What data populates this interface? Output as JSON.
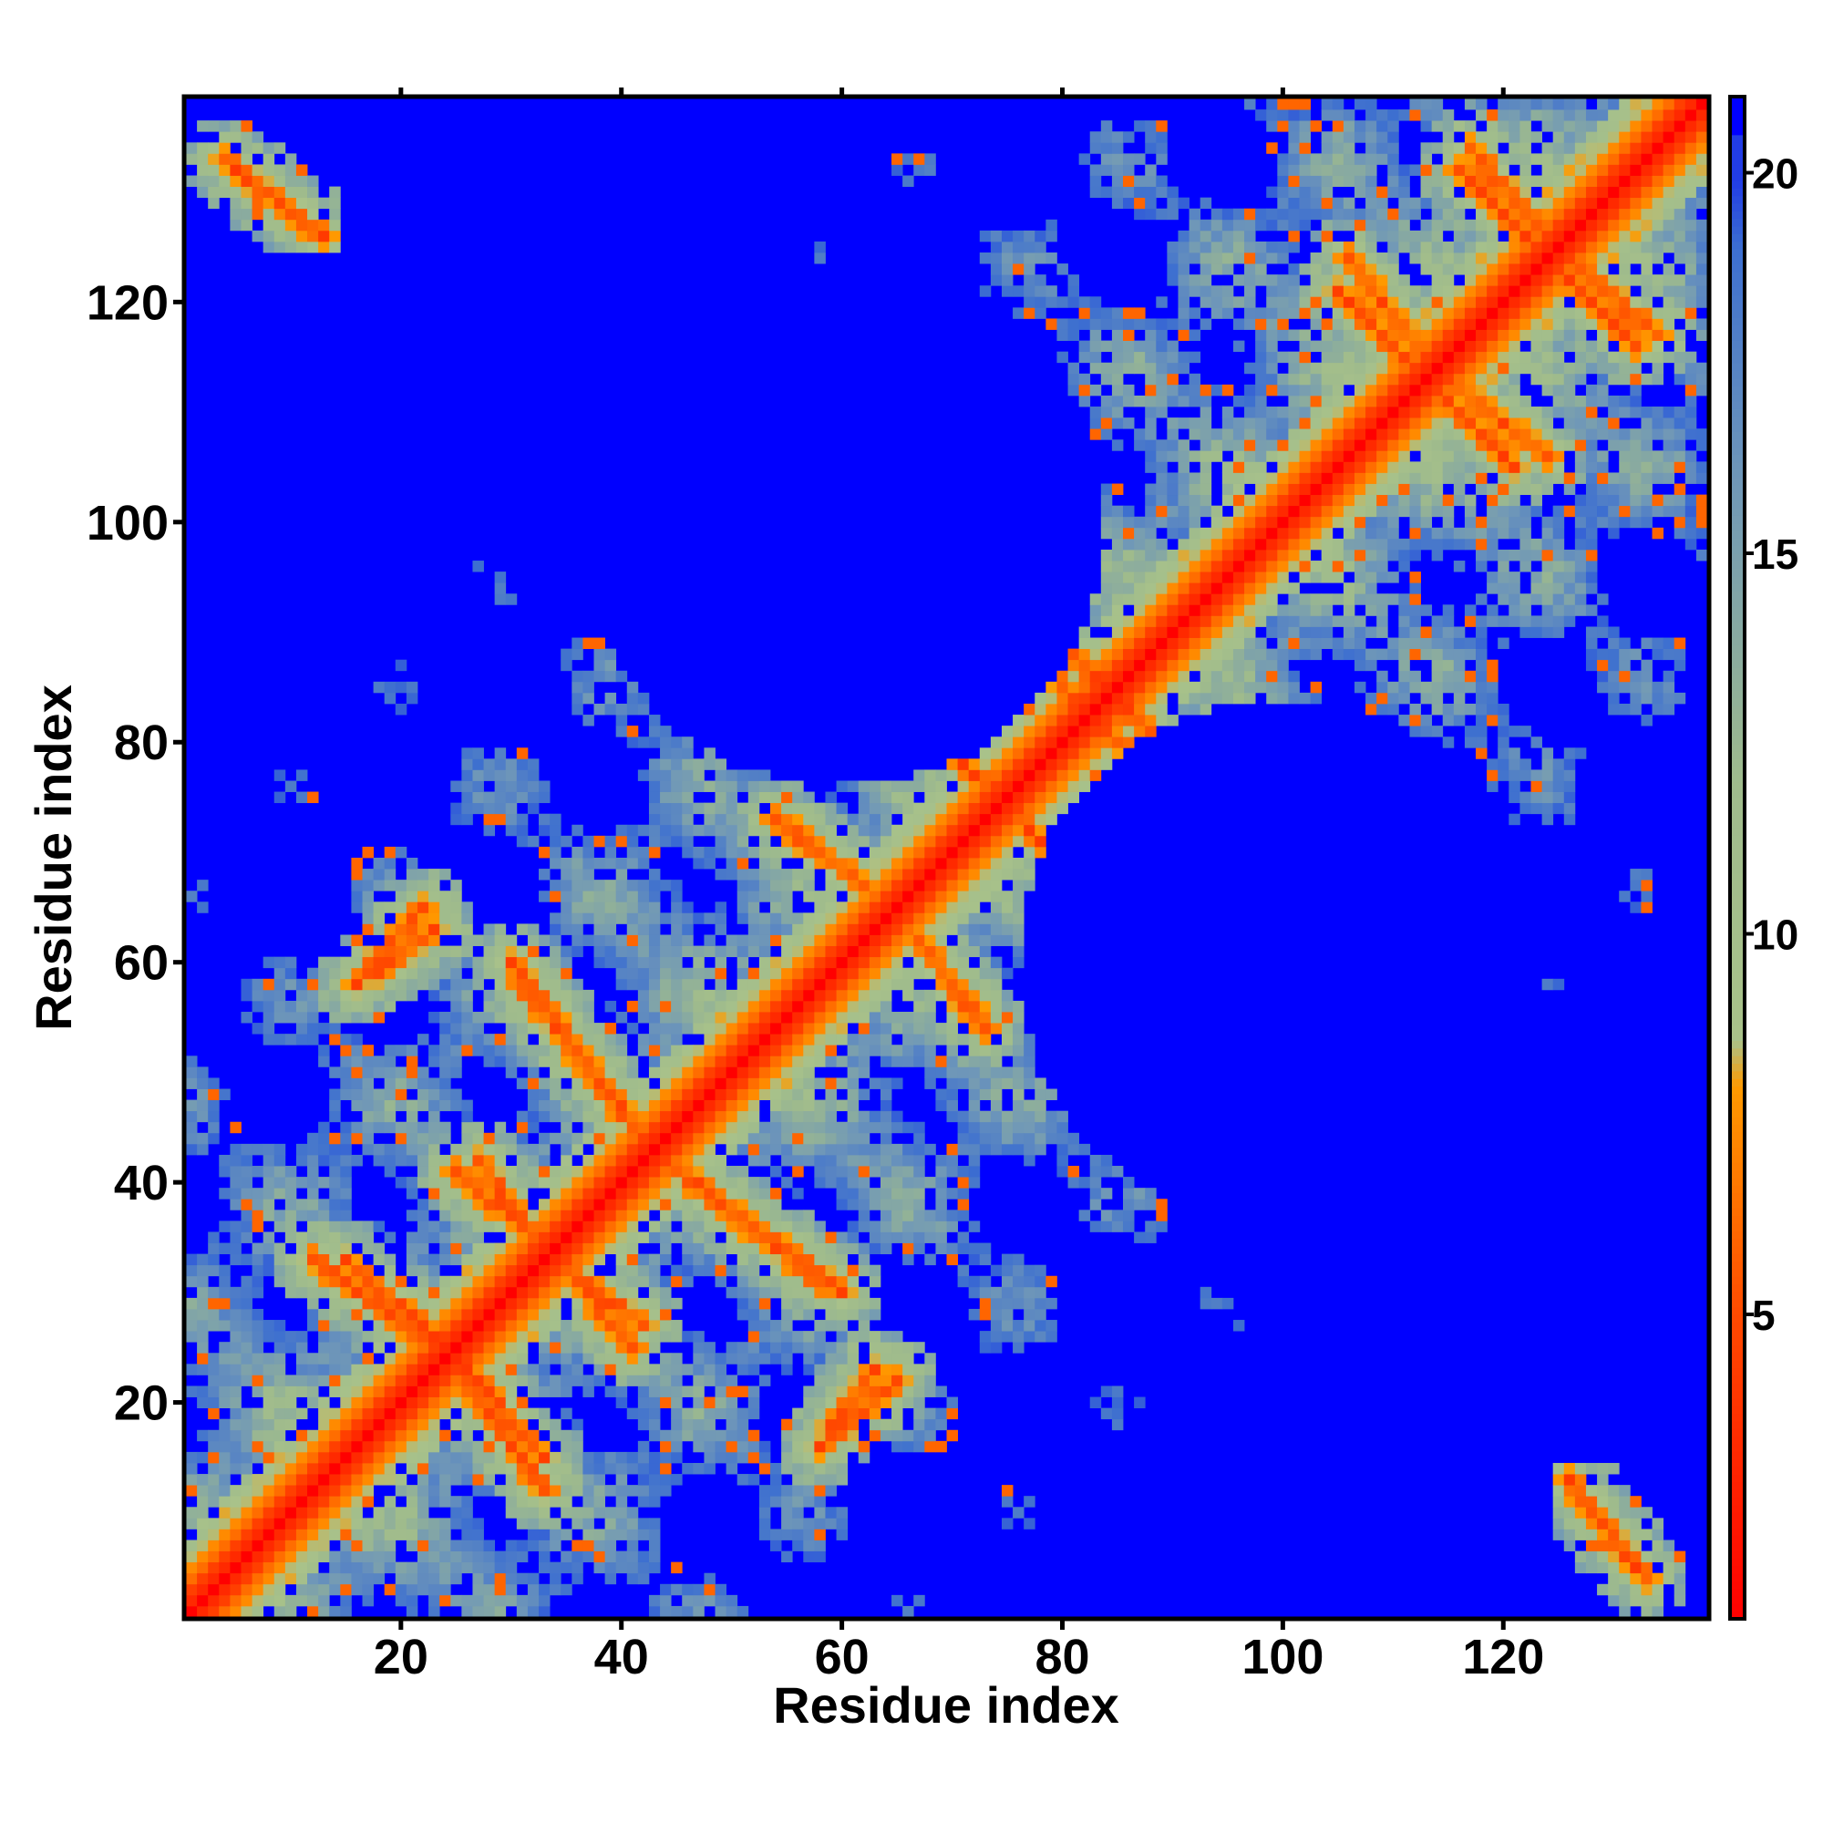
{
  "chart_data": {
    "type": "heatmap",
    "title": "",
    "xlabel": "Residue index",
    "ylabel": "Residue index",
    "n_residues": 138,
    "xlim": [
      1,
      138
    ],
    "ylim": [
      1,
      138
    ],
    "x_ticks": [
      20,
      40,
      60,
      80,
      100,
      120
    ],
    "y_ticks": [
      20,
      40,
      60,
      80,
      100,
      120
    ],
    "colorbar": {
      "ticks": [
        5,
        10,
        15,
        20
      ],
      "range": [
        1,
        21
      ],
      "saturation_value": 20,
      "colors": {
        "low": "#ff0000",
        "mid_low": "#ff8c00",
        "mid": "#a8c08a",
        "high": "#5b85c8",
        "saturated": "#0000ff"
      },
      "stops": [
        {
          "value": 1,
          "color": "#ff0000"
        },
        {
          "value": 5,
          "color": "#ff4a00"
        },
        {
          "value": 8,
          "color": "#ff9a00"
        },
        {
          "value": 8.6,
          "color": "#a9c28a"
        },
        {
          "value": 12,
          "color": "#9fbb8c"
        },
        {
          "value": 16,
          "color": "#6f97b8"
        },
        {
          "value": 19,
          "color": "#3d6fd0"
        },
        {
          "value": 21,
          "color": "#0000ff"
        }
      ]
    },
    "structure": {
      "diagonal_distance": 1,
      "ca_step": 3.8,
      "helix_rise_per_residue": 1.5,
      "helix_residues_per_turn": 3.6,
      "helix_radius": 2.3,
      "residues_per_coil_unit": 9.5,
      "coil_radius": 9.5,
      "coil_rise_per_unit": 9.5,
      "blue_cutoff": 20
    },
    "contact_features": [
      {
        "kind": "diagonal_band",
        "residues": [
          1,
          138
        ],
        "distance": 2
      },
      {
        "kind": "antidiagonal_stripe",
        "from": [
          12,
          33
        ],
        "to": [
          22,
          26
        ]
      },
      {
        "kind": "antidiagonal_stripe",
        "from": [
          26,
          23
        ],
        "to": [
          33,
          15
        ]
      },
      {
        "kind": "antidiagonal_stripe",
        "from": [
          27,
          42
        ],
        "to": [
          33,
          34
        ]
      },
      {
        "kind": "antidiagonal_stripe",
        "from": [
          36,
          31
        ],
        "to": [
          41,
          25
        ]
      },
      {
        "kind": "antidiagonal_stripe",
        "from": [
          30,
          60
        ],
        "to": [
          42,
          44
        ]
      },
      {
        "kind": "antidiagonal_stripe",
        "from": [
          44,
          42
        ],
        "to": [
          58,
          31
        ]
      },
      {
        "kind": "antidiagonal_stripe",
        "from": [
          54,
          73
        ],
        "to": [
          62,
          67
        ]
      },
      {
        "kind": "antidiagonal_stripe",
        "from": [
          67,
          62
        ],
        "to": [
          73,
          54
        ]
      },
      {
        "kind": "antidiagonal_stripe",
        "from": [
          67,
          82
        ],
        "to": [
          75,
          74
        ]
      },
      {
        "kind": "antidiagonal_stripe",
        "from": [
          76,
          73
        ],
        "to": [
          82,
          67
        ]
      },
      {
        "kind": "antidiagonal_stripe",
        "from": [
          80,
          89
        ],
        "to": [
          84,
          85
        ]
      },
      {
        "kind": "antidiagonal_stripe",
        "from": [
          84,
          81
        ],
        "to": [
          88,
          78
        ]
      },
      {
        "kind": "antidiagonal_stripe",
        "from": [
          106,
          124
        ],
        "to": [
          113,
          115
        ]
      },
      {
        "kind": "antidiagonal_stripe",
        "from": [
          113,
          113
        ],
        "to": [
          121,
          105
        ]
      },
      {
        "kind": "antidiagonal_stripe",
        "from": [
          117,
          134
        ],
        "to": [
          124,
          126
        ]
      },
      {
        "kind": "antidiagonal_stripe",
        "from": [
          125,
          123
        ],
        "to": [
          132,
          116
        ]
      },
      {
        "kind": "antidiagonal_stripe",
        "from": [
          105,
          74
        ],
        "to": [
          112,
          66
        ]
      },
      {
        "kind": "antidiagonal_stripe",
        "from": [
          106,
          58
        ],
        "to": [
          112,
          62
        ]
      },
      {
        "kind": "antidiagonal_stripe",
        "from": [
          59,
          18
        ],
        "to": [
          63,
          23
        ]
      },
      {
        "kind": "antidiagonal_stripe",
        "from": [
          16,
          58
        ],
        "to": [
          22,
          65
        ]
      },
      {
        "kind": "antidiagonal_stripe",
        "from": [
          56,
          109
        ],
        "to": [
          59,
          103
        ]
      },
      {
        "kind": "antidiagonal_stripe",
        "from": [
          71,
          110
        ],
        "to": [
          74,
          104
        ]
      },
      {
        "kind": "terminal_contact",
        "from": [
          4,
          133
        ],
        "to": [
          13,
          126
        ]
      },
      {
        "kind": "terminal_contact",
        "from": [
          126,
          13
        ],
        "to": [
          132,
          5
        ]
      },
      {
        "kind": "blue_void",
        "center": [
          100,
          60
        ],
        "radius": 24
      },
      {
        "kind": "blue_void",
        "center": [
          60,
          100
        ],
        "radius": 24
      }
    ]
  }
}
